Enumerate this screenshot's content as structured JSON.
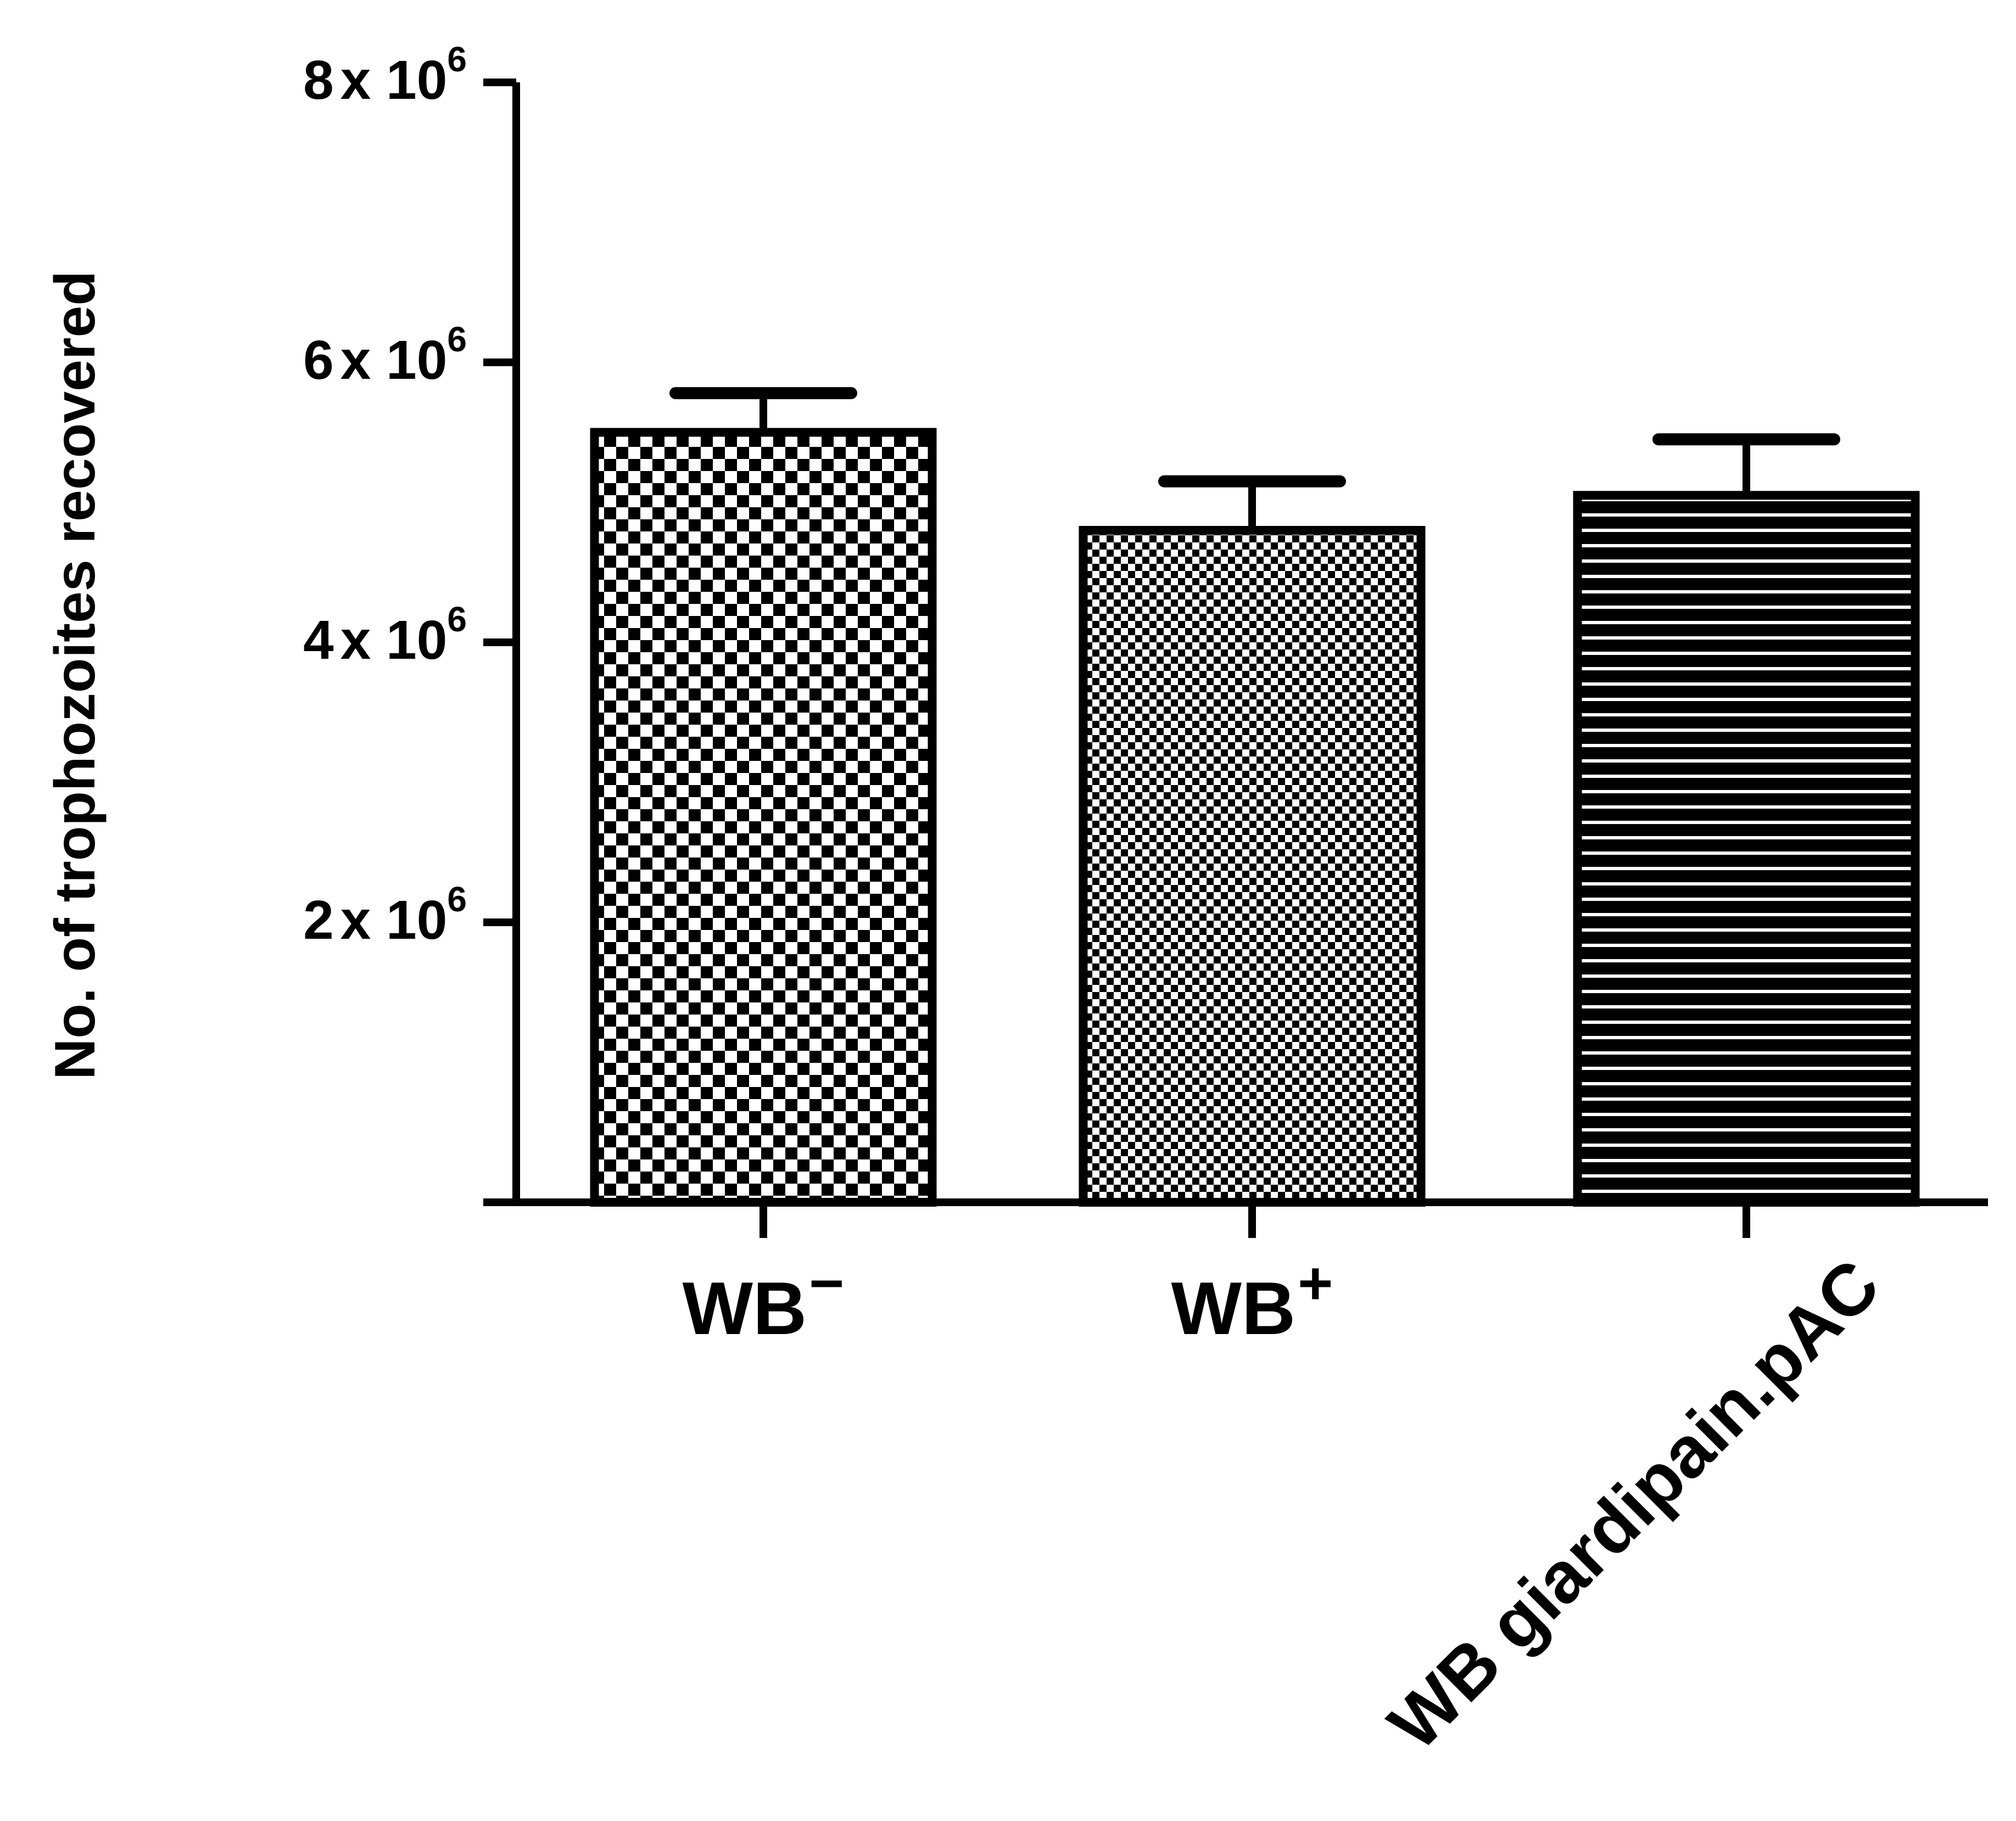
{
  "chart_data": {
    "type": "bar",
    "categories": [
      {
        "base": "WB",
        "sup": "−"
      },
      {
        "base": "WB",
        "sup": "+"
      },
      {
        "base": "WB giardipain.pAC",
        "sup": ""
      }
    ],
    "values": [
      5500000,
      4800000,
      5050000
    ],
    "errors": [
      280000,
      350000,
      400000
    ],
    "patterns": [
      "checker-large",
      "checker-small",
      "horizontal-stripes"
    ],
    "ylabel": "No. of trophozoites recovered",
    "yticks": [
      {
        "value": 2000000,
        "coef": "2",
        "base": "x 10",
        "exp": "6"
      },
      {
        "value": 4000000,
        "coef": "4",
        "base": "x 10",
        "exp": "6"
      },
      {
        "value": 6000000,
        "coef": "6",
        "base": "x 10",
        "exp": "6"
      },
      {
        "value": 8000000,
        "coef": "8",
        "base": "x 10",
        "exp": "6"
      }
    ],
    "ylim": [
      0,
      8000000
    ],
    "grid": false,
    "legend": "none",
    "colors": {
      "ink": "#000000",
      "paper": "#ffffff"
    }
  }
}
